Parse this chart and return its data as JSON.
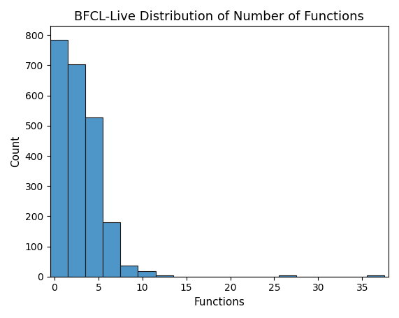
{
  "title": "BFCL-Live Distribution of Number of Functions",
  "xlabel": "Functions",
  "ylabel": "Count",
  "bar_color": "#4f96c8",
  "edge_color": "#1a1a1a",
  "bin_edges": [
    -0.5,
    1.5,
    3.5,
    5.5,
    7.5,
    9.5,
    11.5,
    13.5,
    15.5,
    17.5,
    19.5,
    21.5,
    23.5,
    25.5,
    27.5,
    29.5,
    31.5,
    33.5,
    35.5,
    37.5
  ],
  "counts": [
    785,
    703,
    527,
    180,
    37,
    17,
    3,
    0,
    0,
    0,
    0,
    0,
    0,
    4,
    0,
    0,
    0,
    0,
    3
  ],
  "xlim": [
    -0.5,
    38
  ],
  "ylim": [
    0,
    830
  ],
  "xticks": [
    0,
    5,
    10,
    15,
    20,
    25,
    30,
    35
  ],
  "yticks": [
    0,
    100,
    200,
    300,
    400,
    500,
    600,
    700,
    800
  ],
  "figsize": [
    5.71,
    4.55
  ],
  "dpi": 100
}
